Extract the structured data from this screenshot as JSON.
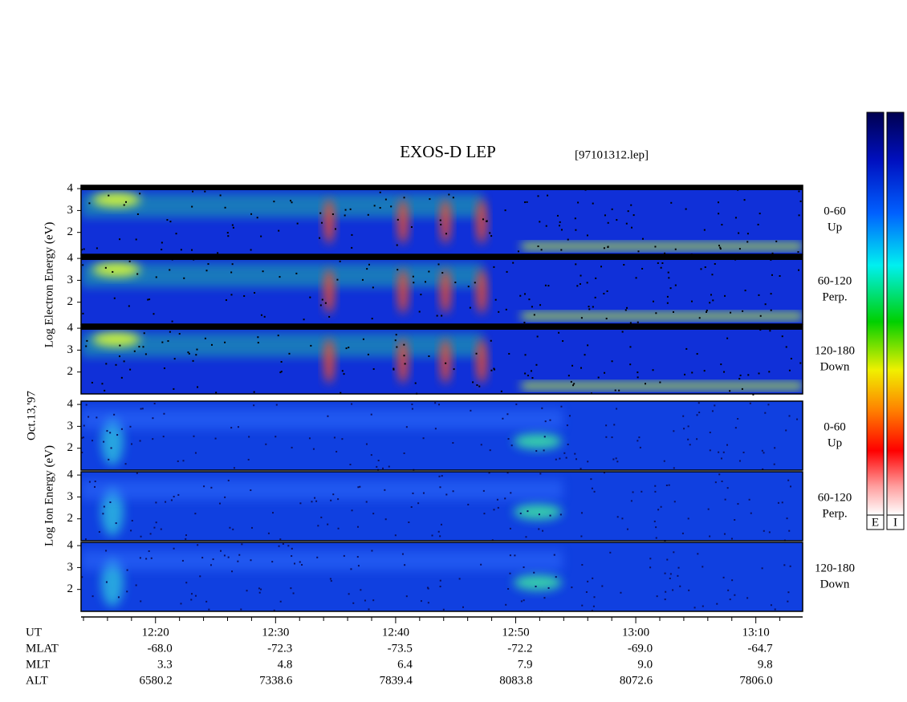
{
  "chart_data": {
    "type": "spectrogram",
    "title": "EXOS-D LEP",
    "subtitle": "[97101312.lep]",
    "electron_axis_label": "Log  Electron  Energy  (eV)",
    "ion_axis_label": "Log  Ion  Energy  (eV)",
    "date_label": "Oct.13,'97",
    "ylim": [
      1,
      4.15
    ],
    "yticks": [
      2,
      3,
      4
    ],
    "xlim": [
      733.8,
      793.9
    ],
    "xticks": [
      {
        "value": 740,
        "label": "12:20"
      },
      {
        "value": 750,
        "label": "12:30"
      },
      {
        "value": 760,
        "label": "12:40"
      },
      {
        "value": 770,
        "label": "12:50"
      },
      {
        "value": 780,
        "label": "13:00"
      },
      {
        "value": 790,
        "label": "13:10"
      }
    ],
    "xminorticks": [
      734,
      736,
      738,
      742,
      744,
      746,
      748,
      752,
      754,
      756,
      758,
      762,
      764,
      766,
      768,
      772,
      774,
      776,
      778,
      782,
      784,
      786,
      788,
      792
    ],
    "panels": [
      {
        "species": "electron",
        "labels": [
          "0-60",
          "Up"
        ]
      },
      {
        "species": "electron",
        "labels": [
          "60-120",
          "Perp."
        ]
      },
      {
        "species": "electron",
        "labels": [
          "120-180",
          "Down"
        ]
      },
      {
        "species": "ion",
        "labels": [
          "0-60",
          "Up"
        ]
      },
      {
        "species": "ion",
        "labels": [
          "60-120",
          "Perp."
        ]
      },
      {
        "species": "ion",
        "labels": [
          "120-180",
          "Down"
        ]
      }
    ],
    "colorbars": [
      "E",
      "I"
    ],
    "ephemeris": {
      "time_label": "UT",
      "rows": [
        {
          "label": "MLAT",
          "values": [
            "-68.0",
            "-72.3",
            "-73.5",
            "-72.2",
            "-69.0",
            "-64.7"
          ]
        },
        {
          "label": "MLT",
          "values": [
            "3.3",
            "4.8",
            "6.4",
            "7.9",
            "9.0",
            "9.8"
          ]
        },
        {
          "label": "ALT",
          "values": [
            "6580.2",
            "7338.6",
            "7839.4",
            "8083.8",
            "8072.6",
            "7806.0"
          ]
        }
      ]
    }
  }
}
